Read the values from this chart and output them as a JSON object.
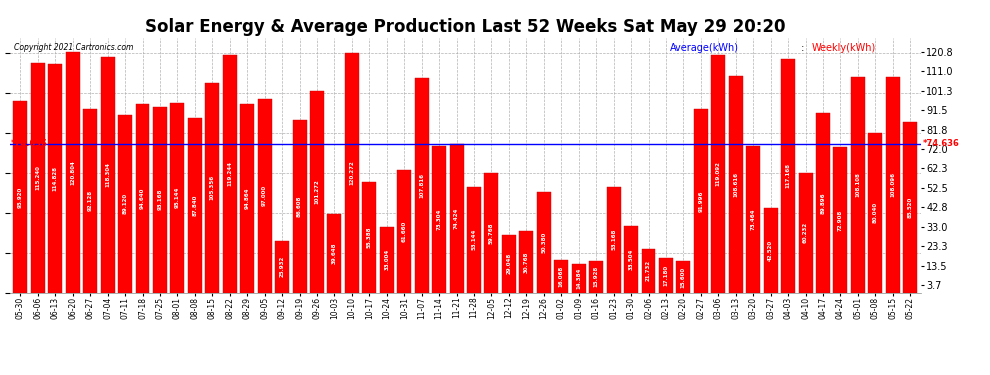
{
  "title": "Solar Energy & Average Production Last 52 Weeks Sat May 29 20:20",
  "copyright": "Copyright 2021 Cartronics.com",
  "legend_avg": "Average(kWh)",
  "legend_weekly": "Weekly(kWh)",
  "average_line": 74.636,
  "yticks": [
    3.7,
    13.5,
    23.3,
    33.0,
    42.8,
    52.5,
    62.3,
    72.0,
    81.8,
    91.5,
    101.3,
    111.0,
    120.8
  ],
  "bar_color": "#FF0000",
  "avg_line_color": "#0000FF",
  "background_color": "#FFFFFF",
  "categories": [
    "05-30",
    "06-06",
    "06-13",
    "06-20",
    "06-27",
    "07-04",
    "07-11",
    "07-18",
    "07-25",
    "08-01",
    "08-08",
    "08-15",
    "08-22",
    "08-29",
    "09-05",
    "09-12",
    "09-19",
    "09-26",
    "10-03",
    "10-10",
    "10-17",
    "10-24",
    "10-31",
    "11-07",
    "11-14",
    "11-21",
    "11-28",
    "12-05",
    "12-12",
    "12-19",
    "12-26",
    "01-02",
    "01-09",
    "01-16",
    "01-23",
    "01-30",
    "02-06",
    "02-13",
    "02-20",
    "02-27",
    "03-06",
    "03-13",
    "03-20",
    "03-27",
    "04-03",
    "04-10",
    "04-17",
    "04-24",
    "05-01",
    "05-08",
    "05-15",
    "05-22"
  ],
  "values": [
    95.92,
    115.24,
    114.828,
    120.804,
    92.128,
    118.304,
    89.12,
    94.64,
    93.168,
    95.144,
    87.84,
    105.356,
    119.244,
    94.864,
    97.0,
    25.932,
    86.608,
    101.272,
    39.648,
    120.272,
    55.388,
    33.004,
    61.66,
    107.816,
    73.304,
    74.424,
    53.144,
    59.768,
    29.048,
    30.768,
    50.38,
    16.068,
    14.384,
    15.928,
    53.168,
    33.504,
    21.732,
    17.18,
    15.6,
    91.996,
    119.092,
    108.616,
    73.464,
    42.52,
    117.168,
    60.232,
    89.896,
    72.908,
    108.108,
    80.04,
    108.096,
    85.52
  ],
  "ylim_max": 128,
  "bar_width": 0.8
}
